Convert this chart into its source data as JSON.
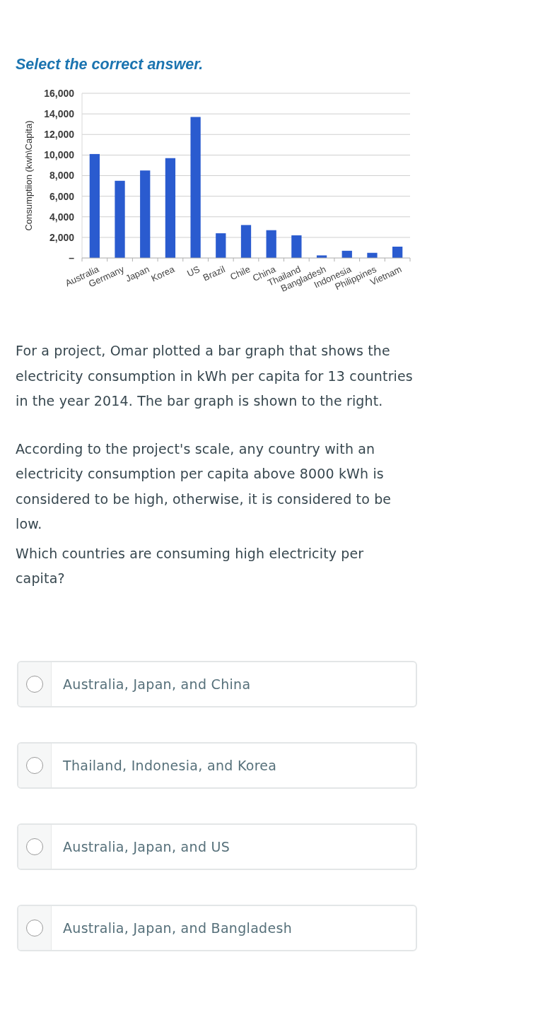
{
  "chart_data": {
    "type": "bar",
    "title": "Select the correct answer.",
    "ylabel": "Consumptiion (kwh\\Capita)",
    "categories": [
      "Australia",
      "Germany",
      "Japan",
      "Korea",
      "US",
      "Brazil",
      "Chile",
      "China",
      "Thailand",
      "Bangladesh",
      "Indonesia",
      "Philippines",
      "Vietnam"
    ],
    "values": [
      10100,
      7500,
      8500,
      9700,
      13700,
      2400,
      3200,
      2700,
      2200,
      250,
      700,
      500,
      1100
    ],
    "color": "#2a5bcf",
    "ylim": [
      0,
      16000
    ],
    "yticks": [
      {
        "value": 0,
        "label": "–"
      },
      {
        "value": 2000,
        "label": "2,000"
      },
      {
        "value": 4000,
        "label": "4,000"
      },
      {
        "value": 6000,
        "label": "6,000"
      },
      {
        "value": 8000,
        "label": "8,000"
      },
      {
        "value": 10000,
        "label": "10,000"
      },
      {
        "value": 12000,
        "label": "12,000"
      },
      {
        "value": 14000,
        "label": "14,000"
      },
      {
        "value": 16000,
        "label": "16,000"
      }
    ],
    "grid": "y",
    "annotations": [
      "For a project, Omar plotted a bar graph that shows the electricity consumption in kWh per capita for 13 countries in the year 2014. The bar graph is shown to the right.",
      "According to the project's scale, any country with an electricity consumption per capita above 8000 kWh is considered to be high, otherwise, it is considered to be low.",
      "Which countries are consuming high electricity per capita?",
      "Australia, Japan, and China",
      "Thailand, Indonesia, and Korea",
      "Australia, Japan, and US",
      "Australia, Japan, and Bangladesh"
    ]
  }
}
